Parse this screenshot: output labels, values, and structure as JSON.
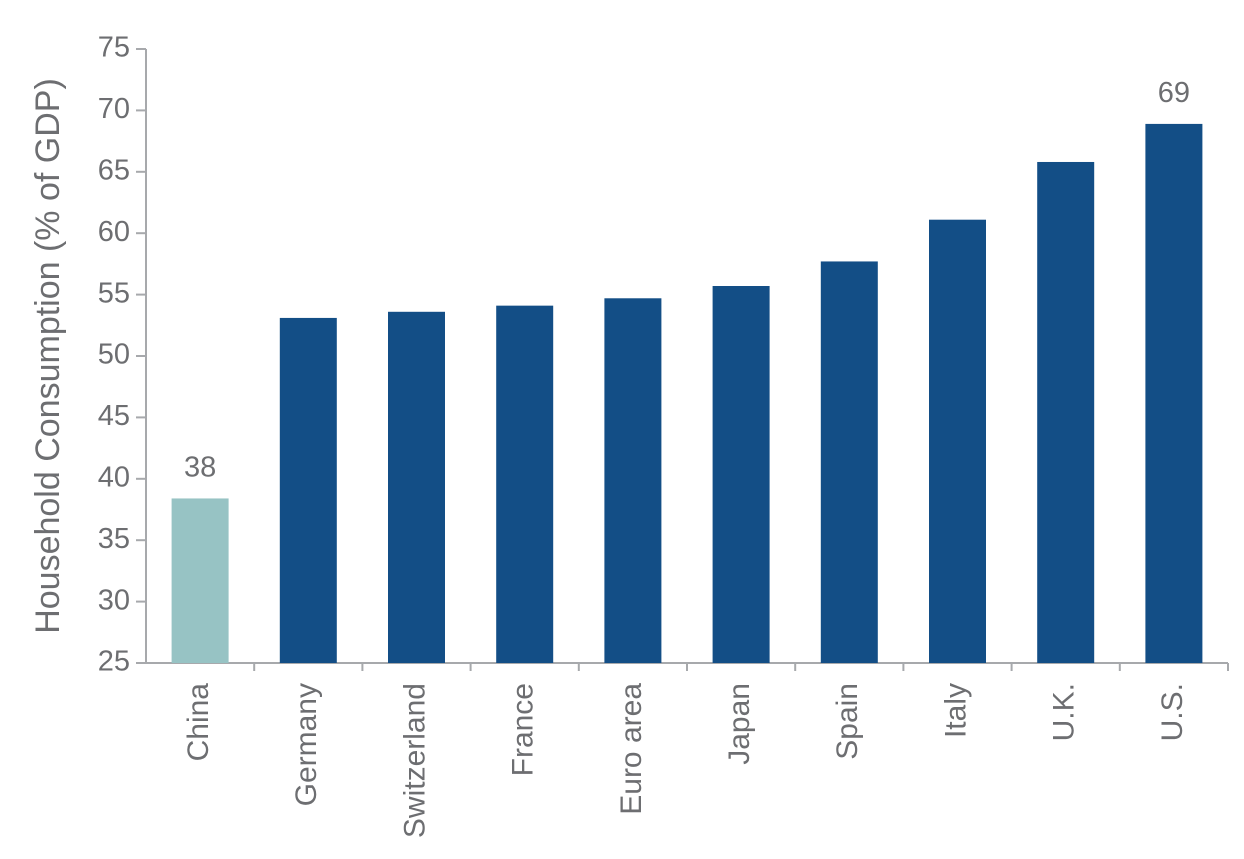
{
  "chart_data": {
    "type": "bar",
    "ylabel": "Household Consumption (% of GDP)",
    "xlabel": "",
    "ylim": [
      25,
      75
    ],
    "yticks": [
      25,
      30,
      35,
      40,
      45,
      50,
      55,
      60,
      65,
      70,
      75
    ],
    "grid": false,
    "categories": [
      "China",
      "Germany",
      "Switzerland",
      "France",
      "Euro area",
      "Japan",
      "Spain",
      "Italy",
      "U.K.",
      "U.S."
    ],
    "values": [
      38.4,
      53.1,
      53.6,
      54.1,
      54.7,
      55.7,
      57.7,
      61.1,
      65.8,
      68.9
    ],
    "data_labels": [
      {
        "category": "China",
        "text": "38"
      },
      {
        "category": "U.S.",
        "text": "69"
      }
    ],
    "colors": {
      "highlight": "#97c3c4",
      "default": "#134e86",
      "axis": "#a7a9ac",
      "text": "#6d6e71"
    },
    "highlight_categories": [
      "China"
    ]
  }
}
